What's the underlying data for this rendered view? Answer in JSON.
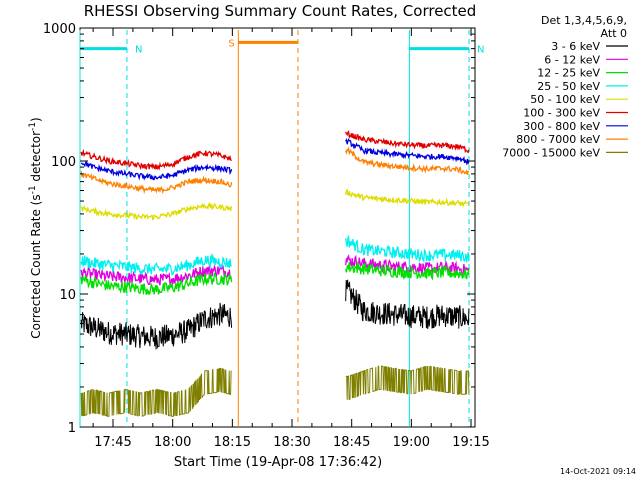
{
  "chart_data": {
    "type": "line",
    "title": "RHESSI Observing Summary Count Rates, Corrected",
    "xlabel": "Start Time (19-Apr-08 17:36:42)",
    "ylabel_main": "Corrected Count Rate (s",
    "ylabel_sup1": "-1",
    "ylabel_mid": " detector",
    "ylabel_sup2": "-1",
    "ylabel_end": ")",
    "yscale": "log",
    "ylim": [
      1,
      1000
    ],
    "y_ticks": [
      {
        "value": 1,
        "label": "1"
      },
      {
        "value": 10,
        "label": "10"
      },
      {
        "value": 100,
        "label": "100"
      },
      {
        "value": 1000,
        "label": "1000"
      }
    ],
    "x_ticks": [
      {
        "value": 45,
        "label": "17:45"
      },
      {
        "value": 60,
        "label": "18:00"
      },
      {
        "value": 75,
        "label": "18:15"
      },
      {
        "value": 90,
        "label": "18:30"
      },
      {
        "value": 105,
        "label": "18:45"
      },
      {
        "value": 120,
        "label": "19:00"
      },
      {
        "value": 135,
        "label": "19:15"
      }
    ],
    "xlim": [
      36.7,
      136
    ],
    "x_unit": "minutes after 17:00",
    "legend_header": [
      "Det 1,3,4,5,6,9,",
      "Att 0"
    ],
    "legend_position": "right",
    "gaps": [
      [
        74.8,
        103.5
      ]
    ],
    "series": [
      {
        "name": "3 - 6 keV",
        "color": "#000000",
        "x": [
          37,
          40,
          44,
          48,
          52,
          56,
          60,
          64,
          68,
          72,
          74.5,
          104,
          108,
          112,
          116,
          120,
          124,
          128,
          132,
          134.5
        ],
        "y": [
          6.0,
          5.6,
          5.1,
          5.0,
          4.8,
          4.7,
          4.9,
          5.3,
          6.5,
          7.0,
          6.8,
          10.5,
          7.5,
          7.2,
          7.0,
          6.8,
          6.7,
          6.9,
          6.7,
          6.5
        ]
      },
      {
        "name": "6 - 12 keV",
        "color": "#e000e0",
        "x": [
          37,
          40,
          44,
          48,
          52,
          56,
          60,
          64,
          68,
          72,
          74.5,
          104,
          108,
          112,
          116,
          120,
          124,
          128,
          132,
          134.5
        ],
        "y": [
          14.5,
          14.0,
          13.5,
          13.3,
          13.0,
          12.8,
          13.0,
          13.8,
          15.0,
          15.0,
          14.5,
          18.0,
          17.0,
          16.5,
          16.0,
          16.0,
          15.5,
          15.8,
          15.5,
          15.0
        ]
      },
      {
        "name": "12 - 25 keV",
        "color": "#00e000",
        "x": [
          37,
          40,
          44,
          48,
          52,
          56,
          60,
          64,
          68,
          72,
          74.5,
          104,
          108,
          112,
          116,
          120,
          124,
          128,
          132,
          134.5
        ],
        "y": [
          13.0,
          12.2,
          11.5,
          11.3,
          11.0,
          10.8,
          11.2,
          12.0,
          13.0,
          13.0,
          12.8,
          16.0,
          15.5,
          15.0,
          14.8,
          14.5,
          14.3,
          14.5,
          14.3,
          14.0
        ]
      },
      {
        "name": "25 - 50 keV",
        "color": "#00f0f0",
        "x": [
          37,
          40,
          44,
          48,
          52,
          56,
          60,
          64,
          68,
          72,
          74.5,
          104,
          108,
          112,
          116,
          120,
          124,
          128,
          132,
          134.5
        ],
        "y": [
          18.0,
          17.0,
          16.5,
          16.0,
          15.5,
          15.3,
          15.5,
          16.5,
          18.0,
          17.5,
          17.0,
          25.0,
          21.5,
          21.0,
          20.5,
          20.0,
          19.5,
          19.8,
          19.5,
          19.0
        ]
      },
      {
        "name": "50 - 100 keV",
        "color": "#dddd00",
        "x": [
          37,
          40,
          44,
          48,
          52,
          56,
          60,
          64,
          68,
          72,
          74.5,
          104,
          108,
          112,
          116,
          120,
          124,
          128,
          132,
          134.5
        ],
        "y": [
          44,
          42,
          40,
          39,
          38,
          38,
          40,
          44,
          46,
          45,
          44,
          58,
          53,
          52,
          51,
          50,
          49,
          49,
          48,
          47
        ]
      },
      {
        "name": "100 - 300 keV",
        "color": "#e00000",
        "x": [
          37,
          40,
          44,
          48,
          52,
          56,
          60,
          64,
          68,
          72,
          74.5,
          104,
          108,
          112,
          116,
          120,
          124,
          128,
          132,
          134.5
        ],
        "y": [
          115,
          108,
          100,
          96,
          92,
          90,
          95,
          108,
          115,
          110,
          104,
          160,
          145,
          140,
          135,
          132,
          130,
          131,
          128,
          120
        ]
      },
      {
        "name": "300 - 800 keV",
        "color": "#0000e0",
        "x": [
          37,
          40,
          44,
          48,
          52,
          56,
          60,
          64,
          68,
          72,
          74.5,
          104,
          108,
          112,
          116,
          120,
          124,
          128,
          132,
          134.5
        ],
        "y": [
          98,
          90,
          84,
          80,
          77,
          75,
          78,
          86,
          90,
          88,
          85,
          140,
          120,
          115,
          112,
          110,
          108,
          108,
          105,
          98
        ]
      },
      {
        "name": "800 - 7000 keV",
        "color": "#ff8000",
        "x": [
          37,
          40,
          44,
          48,
          52,
          56,
          60,
          64,
          68,
          72,
          74.5,
          104,
          108,
          112,
          116,
          120,
          124,
          128,
          132,
          134.5
        ],
        "y": [
          80,
          74,
          68,
          65,
          62,
          60,
          63,
          70,
          72,
          70,
          66,
          120,
          98,
          94,
          91,
          89,
          87,
          88,
          86,
          80
        ]
      },
      {
        "name": "7000 - 15000 keV",
        "color": "#808000",
        "x": [
          37,
          40,
          44,
          48,
          52,
          56,
          60,
          64,
          68,
          72,
          74.5,
          104,
          108,
          112,
          116,
          120,
          124,
          128,
          132,
          134.5
        ],
        "y": [
          1.5,
          1.6,
          1.5,
          1.6,
          1.5,
          1.6,
          1.5,
          1.6,
          2.2,
          2.3,
          2.2,
          2.0,
          2.2,
          2.4,
          2.3,
          2.2,
          2.4,
          2.3,
          2.2,
          2.2
        ]
      }
    ],
    "annotations": [
      {
        "label": "N",
        "color": "#00e0e0",
        "bar": [
          36.7,
          48.5
        ],
        "level": 700,
        "lines_solid": [
          36.7
        ],
        "lines_dashed": [
          48.5
        ]
      },
      {
        "label": "N",
        "color": "#00e0e0",
        "bar": [
          119.5,
          134.5
        ],
        "level": 700,
        "lines_solid": [
          119.5
        ],
        "lines_dashed": [
          134.5
        ]
      },
      {
        "label": "S",
        "color": "#ff8000",
        "bar": [
          76.5,
          91.5
        ],
        "level": 780,
        "lines_solid": [
          76.5
        ],
        "lines_dashed": [
          91.5
        ]
      }
    ]
  },
  "timestamp": "14-Oct-2021 09:14"
}
